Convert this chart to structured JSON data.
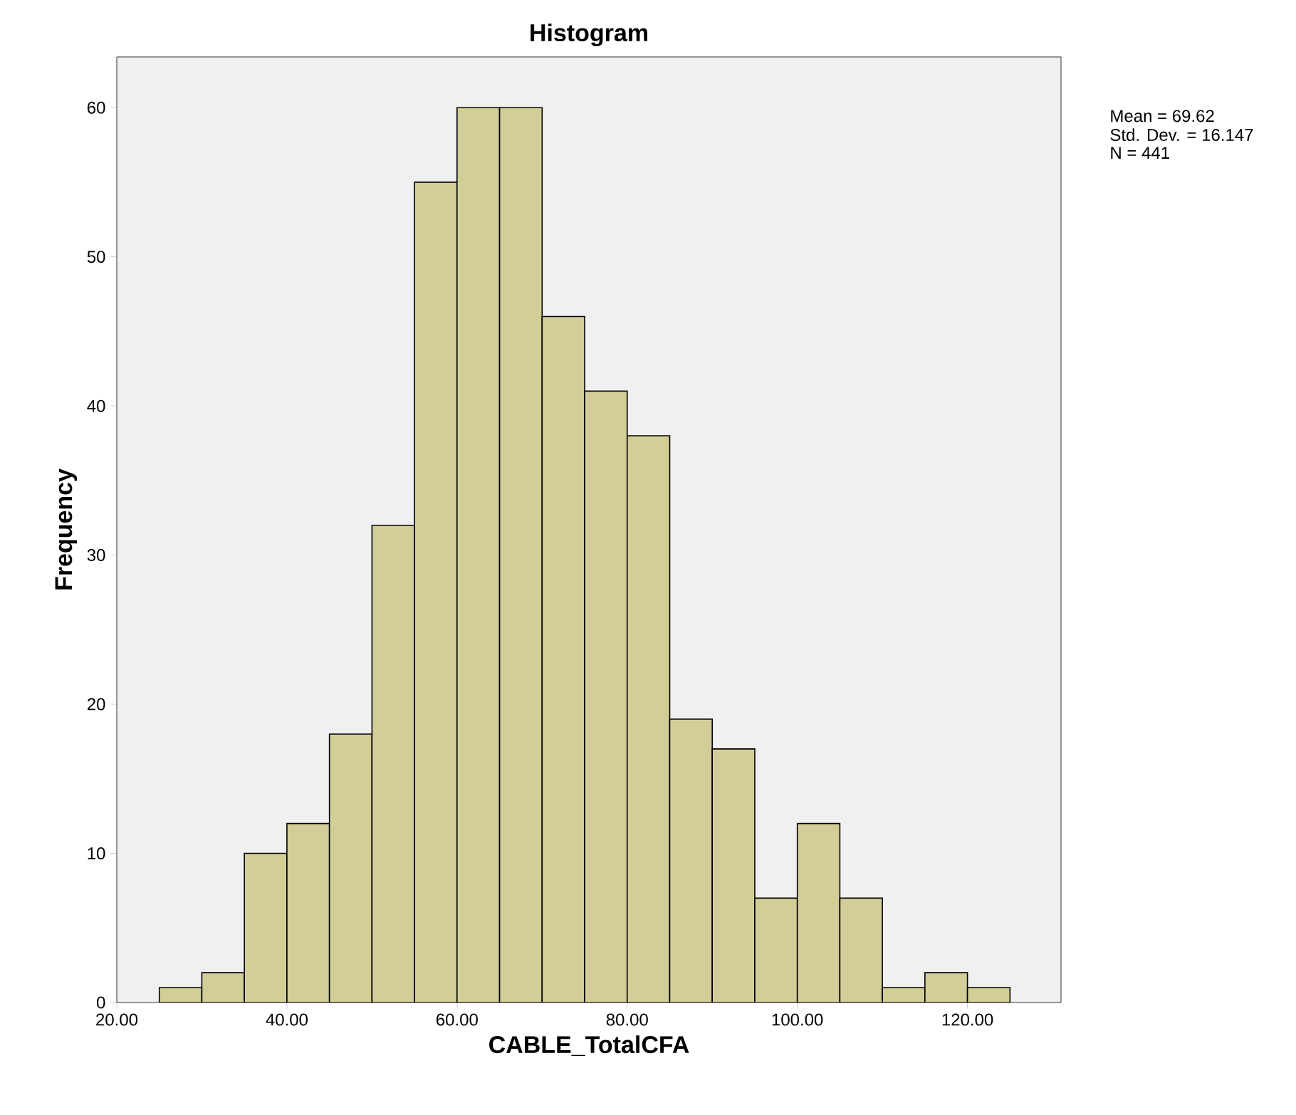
{
  "chart_data": {
    "type": "histogram",
    "title": "Histogram",
    "xlabel": "CABLE_TotalCFA",
    "ylabel": "Frequency",
    "bins": [
      25,
      30,
      35,
      40,
      45,
      50,
      55,
      60,
      65,
      70,
      75,
      80,
      85,
      90,
      95,
      100,
      105,
      110,
      115,
      120,
      125
    ],
    "values": [
      1,
      2,
      10,
      12,
      18,
      32,
      55,
      60,
      60,
      46,
      41,
      38,
      19,
      17,
      7,
      12,
      7,
      1,
      2,
      1
    ],
    "color": "#d3ce98",
    "xlim": [
      20,
      131
    ],
    "ylim": [
      0,
      63.4
    ],
    "xticks": [
      {
        "value": 20,
        "label": "20.00"
      },
      {
        "value": 40,
        "label": "40.00"
      },
      {
        "value": 60,
        "label": "60.00"
      },
      {
        "value": 80,
        "label": "80.00"
      },
      {
        "value": 100,
        "label": "100.00"
      },
      {
        "value": 120,
        "label": "120.00"
      }
    ],
    "yticks": [
      0,
      10,
      20,
      30,
      40,
      50,
      60
    ],
    "grid": false,
    "annotations": [
      "Mean = 69.62",
      "Std. Dev. = 16.147",
      "N = 441"
    ]
  }
}
